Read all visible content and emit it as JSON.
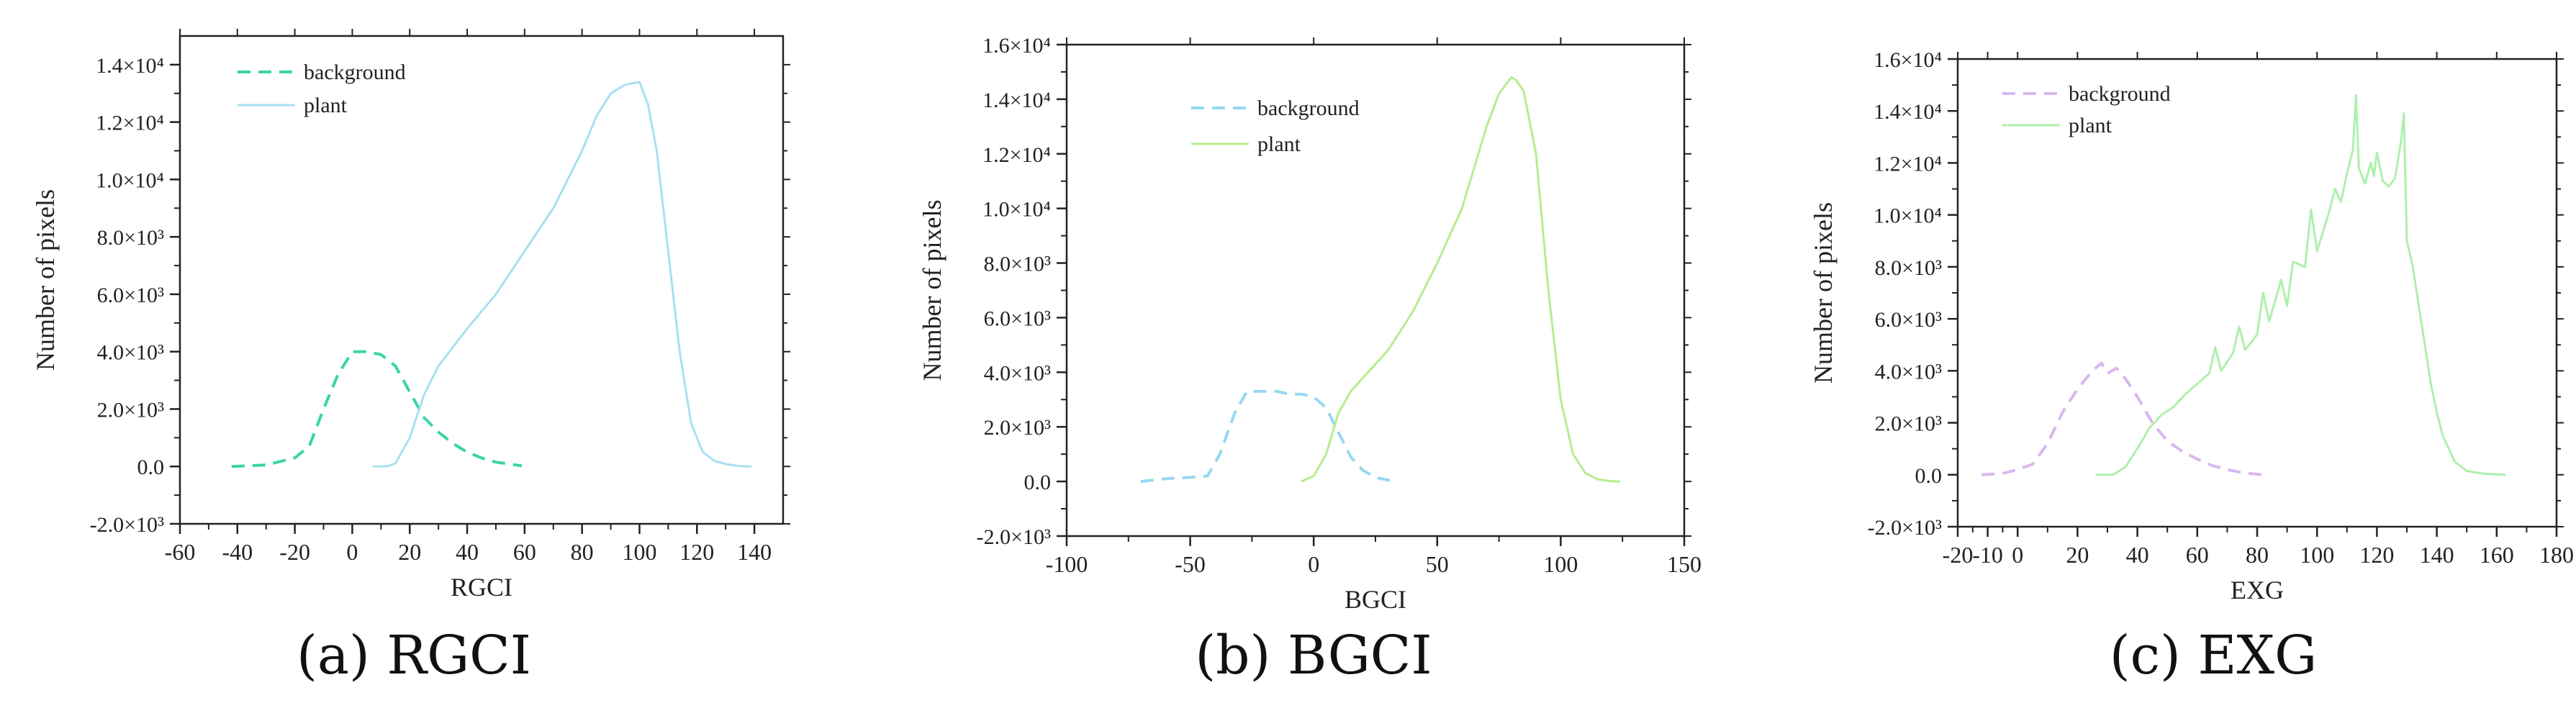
{
  "chart_data": [
    {
      "type": "line",
      "title": "",
      "xlabel": "RGCI",
      "ylabel": "Number of pixels",
      "xlim": [
        -60,
        150
      ],
      "ylim": [
        -2000,
        15000
      ],
      "xticks": [
        -60,
        -40,
        -20,
        0,
        20,
        40,
        60,
        80,
        100,
        120,
        140
      ],
      "yticks": [
        -2000,
        0,
        2000,
        4000,
        6000,
        8000,
        10000,
        12000,
        14000
      ],
      "ytick_labels": [
        "-2.0×10³",
        "0.0",
        "2.0×10³",
        "4.0×10³",
        "6.0×10³",
        "8.0×10³",
        "1.0×10⁴",
        "1.2×10⁴",
        "1.4×10⁴"
      ],
      "legend_position": "top-left",
      "series": [
        {
          "name": "background",
          "color": "#3ad4a8",
          "style": "dashed",
          "x": [
            -42,
            -30,
            -20,
            -15,
            -10,
            -5,
            0,
            5,
            10,
            15,
            20,
            25,
            30,
            35,
            40,
            45,
            50,
            55,
            59
          ],
          "y": [
            0,
            50,
            300,
            700,
            2000,
            3200,
            4000,
            4000,
            3900,
            3500,
            2600,
            1700,
            1200,
            800,
            500,
            300,
            150,
            80,
            20
          ]
        },
        {
          "name": "plant",
          "color": "#a8e0f0",
          "style": "solid",
          "x": [
            7,
            12,
            15,
            20,
            25,
            30,
            40,
            50,
            60,
            70,
            80,
            85,
            90,
            95,
            100,
            103,
            106,
            110,
            114,
            118,
            122,
            126,
            130,
            135,
            139
          ],
          "y": [
            0,
            0,
            100,
            1000,
            2500,
            3500,
            4800,
            6000,
            7500,
            9000,
            11000,
            12200,
            13000,
            13300,
            13400,
            12600,
            11000,
            7500,
            4000,
            1500,
            500,
            200,
            80,
            10,
            0
          ]
        }
      ]
    },
    {
      "type": "line",
      "title": "",
      "xlabel": "BGCI",
      "ylabel": "Number of pixels",
      "xlim": [
        -100,
        150
      ],
      "ylim": [
        -2000,
        16000
      ],
      "xticks": [
        -100,
        -50,
        0,
        50,
        100,
        150
      ],
      "yticks": [
        -2000,
        0,
        2000,
        4000,
        6000,
        8000,
        10000,
        12000,
        14000,
        16000
      ],
      "ytick_labels": [
        "-2.0×10³",
        "0.0",
        "2.0×10³",
        "4.0×10³",
        "6.0×10³",
        "8.0×10³",
        "1.0×10⁴",
        "1.2×10⁴",
        "1.4×10⁴",
        "1.6×10⁴"
      ],
      "legend_position": "top-center",
      "series": [
        {
          "name": "background",
          "color": "#96d8f0",
          "style": "dashed",
          "x": [
            -70,
            -60,
            -50,
            -43,
            -38,
            -32,
            -27,
            -20,
            -15,
            -10,
            -5,
            0,
            5,
            10,
            15,
            20,
            25,
            30,
            34
          ],
          "y": [
            0,
            100,
            150,
            200,
            1000,
            2500,
            3300,
            3300,
            3300,
            3200,
            3200,
            3100,
            2700,
            1800,
            900,
            400,
            150,
            50,
            0
          ]
        },
        {
          "name": "plant",
          "color": "#b6ec8e",
          "style": "solid",
          "x": [
            -5,
            0,
            5,
            10,
            15,
            20,
            30,
            40,
            50,
            60,
            65,
            70,
            75,
            80,
            82,
            85,
            90,
            95,
            100,
            105,
            110,
            115,
            120,
            124
          ],
          "y": [
            0,
            200,
            1000,
            2500,
            3300,
            3800,
            4800,
            6200,
            8000,
            10000,
            11500,
            13000,
            14200,
            14800,
            14700,
            14300,
            12000,
            7000,
            3000,
            1000,
            300,
            80,
            10,
            0
          ]
        }
      ]
    },
    {
      "type": "line",
      "title": "",
      "xlabel": "EXG",
      "ylabel": "Number of pixels",
      "xlim": [
        -20,
        180
      ],
      "ylim": [
        -2000,
        16000
      ],
      "xticks": [
        -20,
        -10,
        0,
        20,
        40,
        60,
        80,
        100,
        120,
        140,
        160,
        180
      ],
      "xtick_labels": [
        "-20",
        "-10",
        "0",
        "20",
        "40",
        "60",
        "80",
        "100",
        "120",
        "140",
        "160",
        "180"
      ],
      "yticks": [
        -2000,
        0,
        2000,
        4000,
        6000,
        8000,
        10000,
        12000,
        14000,
        16000
      ],
      "ytick_labels": [
        "-2.0×10³",
        "0.0",
        "2.0×10³",
        "4.0×10³",
        "6.0×10³",
        "8.0×10³",
        "1.0×10⁴",
        "1.2×10⁴",
        "1.4×10⁴",
        "1.6×10⁴"
      ],
      "legend_position": "top-left",
      "series": [
        {
          "name": "background",
          "color": "#d8b8f0",
          "style": "dashed",
          "x": [
            -12,
            -5,
            0,
            5,
            10,
            15,
            20,
            25,
            28,
            30,
            33,
            36,
            40,
            45,
            50,
            55,
            60,
            65,
            70,
            75,
            80,
            82
          ],
          "y": [
            0,
            50,
            200,
            400,
            1200,
            2400,
            3300,
            4000,
            4300,
            3900,
            4100,
            3700,
            3000,
            2000,
            1300,
            900,
            600,
            350,
            200,
            80,
            20,
            0
          ]
        },
        {
          "name": "plant",
          "color": "#aef0ac",
          "style": "solid",
          "x": [
            26,
            32,
            36,
            40,
            44,
            48,
            52,
            56,
            60,
            64,
            66,
            68,
            72,
            74,
            76,
            80,
            82,
            84,
            88,
            90,
            92,
            96,
            98,
            100,
            104,
            106,
            108,
            110,
            112,
            113,
            114,
            116,
            118,
            119,
            120,
            122,
            124,
            126,
            128,
            129,
            130,
            132,
            134,
            136,
            138,
            140,
            142,
            146,
            150,
            155,
            160,
            163
          ],
          "y": [
            0,
            0,
            300,
            1000,
            1800,
            2300,
            2600,
            3100,
            3500,
            3900,
            4900,
            4000,
            4700,
            5700,
            4800,
            5400,
            7000,
            5900,
            7500,
            6500,
            8200,
            8000,
            10200,
            8600,
            10100,
            11000,
            10500,
            11600,
            12500,
            14600,
            11800,
            11200,
            12000,
            11500,
            12400,
            11300,
            11100,
            11400,
            12800,
            13900,
            9000,
            8000,
            6500,
            5000,
            3500,
            2400,
            1500,
            500,
            150,
            50,
            10,
            0
          ]
        }
      ]
    }
  ],
  "captions": [
    "(a) RGCI",
    "(b) BGCI",
    "(c) EXG"
  ]
}
